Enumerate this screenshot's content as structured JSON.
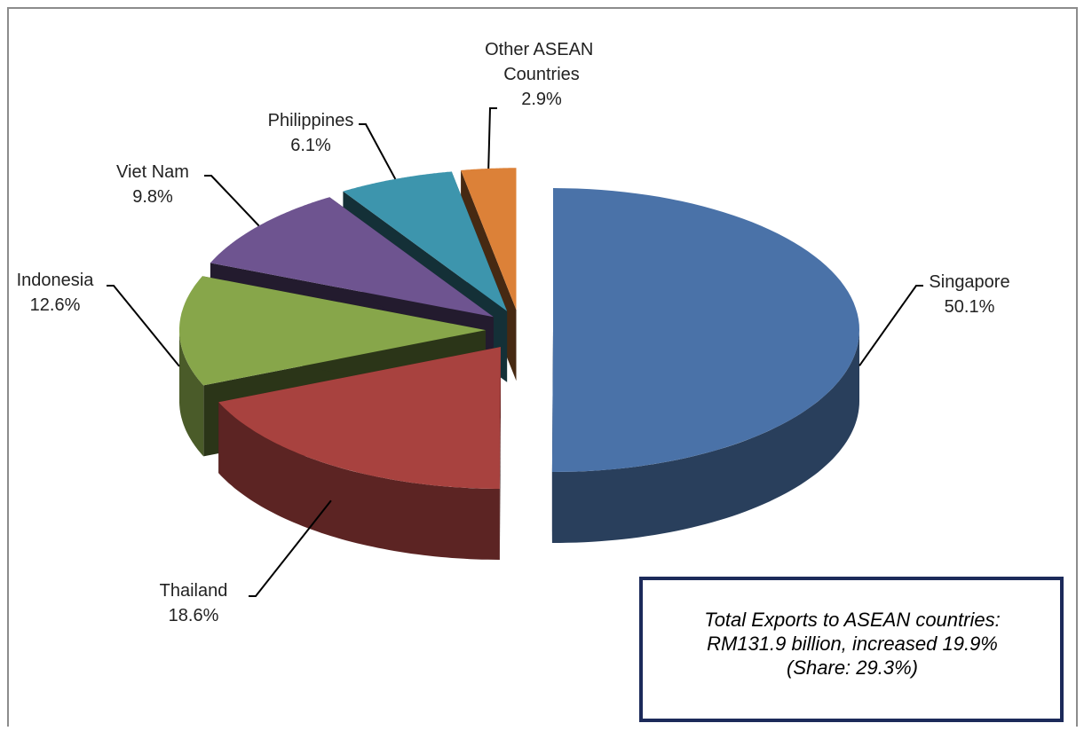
{
  "chart_data": {
    "type": "pie",
    "categories": [
      "Singapore",
      "Thailand",
      "Indonesia",
      "Viet Nam",
      "Philippines",
      "Other ASEAN Countries"
    ],
    "values": [
      50.1,
      18.6,
      12.6,
      9.8,
      6.1,
      2.9
    ],
    "value_labels": [
      "50.1%",
      "18.6%",
      "12.6%",
      "9.8%",
      "6.1%",
      "2.9%"
    ],
    "colors": [
      "#4a72a8",
      "#a8423f",
      "#87a64a",
      "#6e5490",
      "#3d95ad",
      "#dc8138"
    ],
    "annotation": [
      "Total Exports to ASEAN countries:",
      "RM131.9 billion, increased 19.9%",
      "(Share: 29.3%)"
    ]
  }
}
